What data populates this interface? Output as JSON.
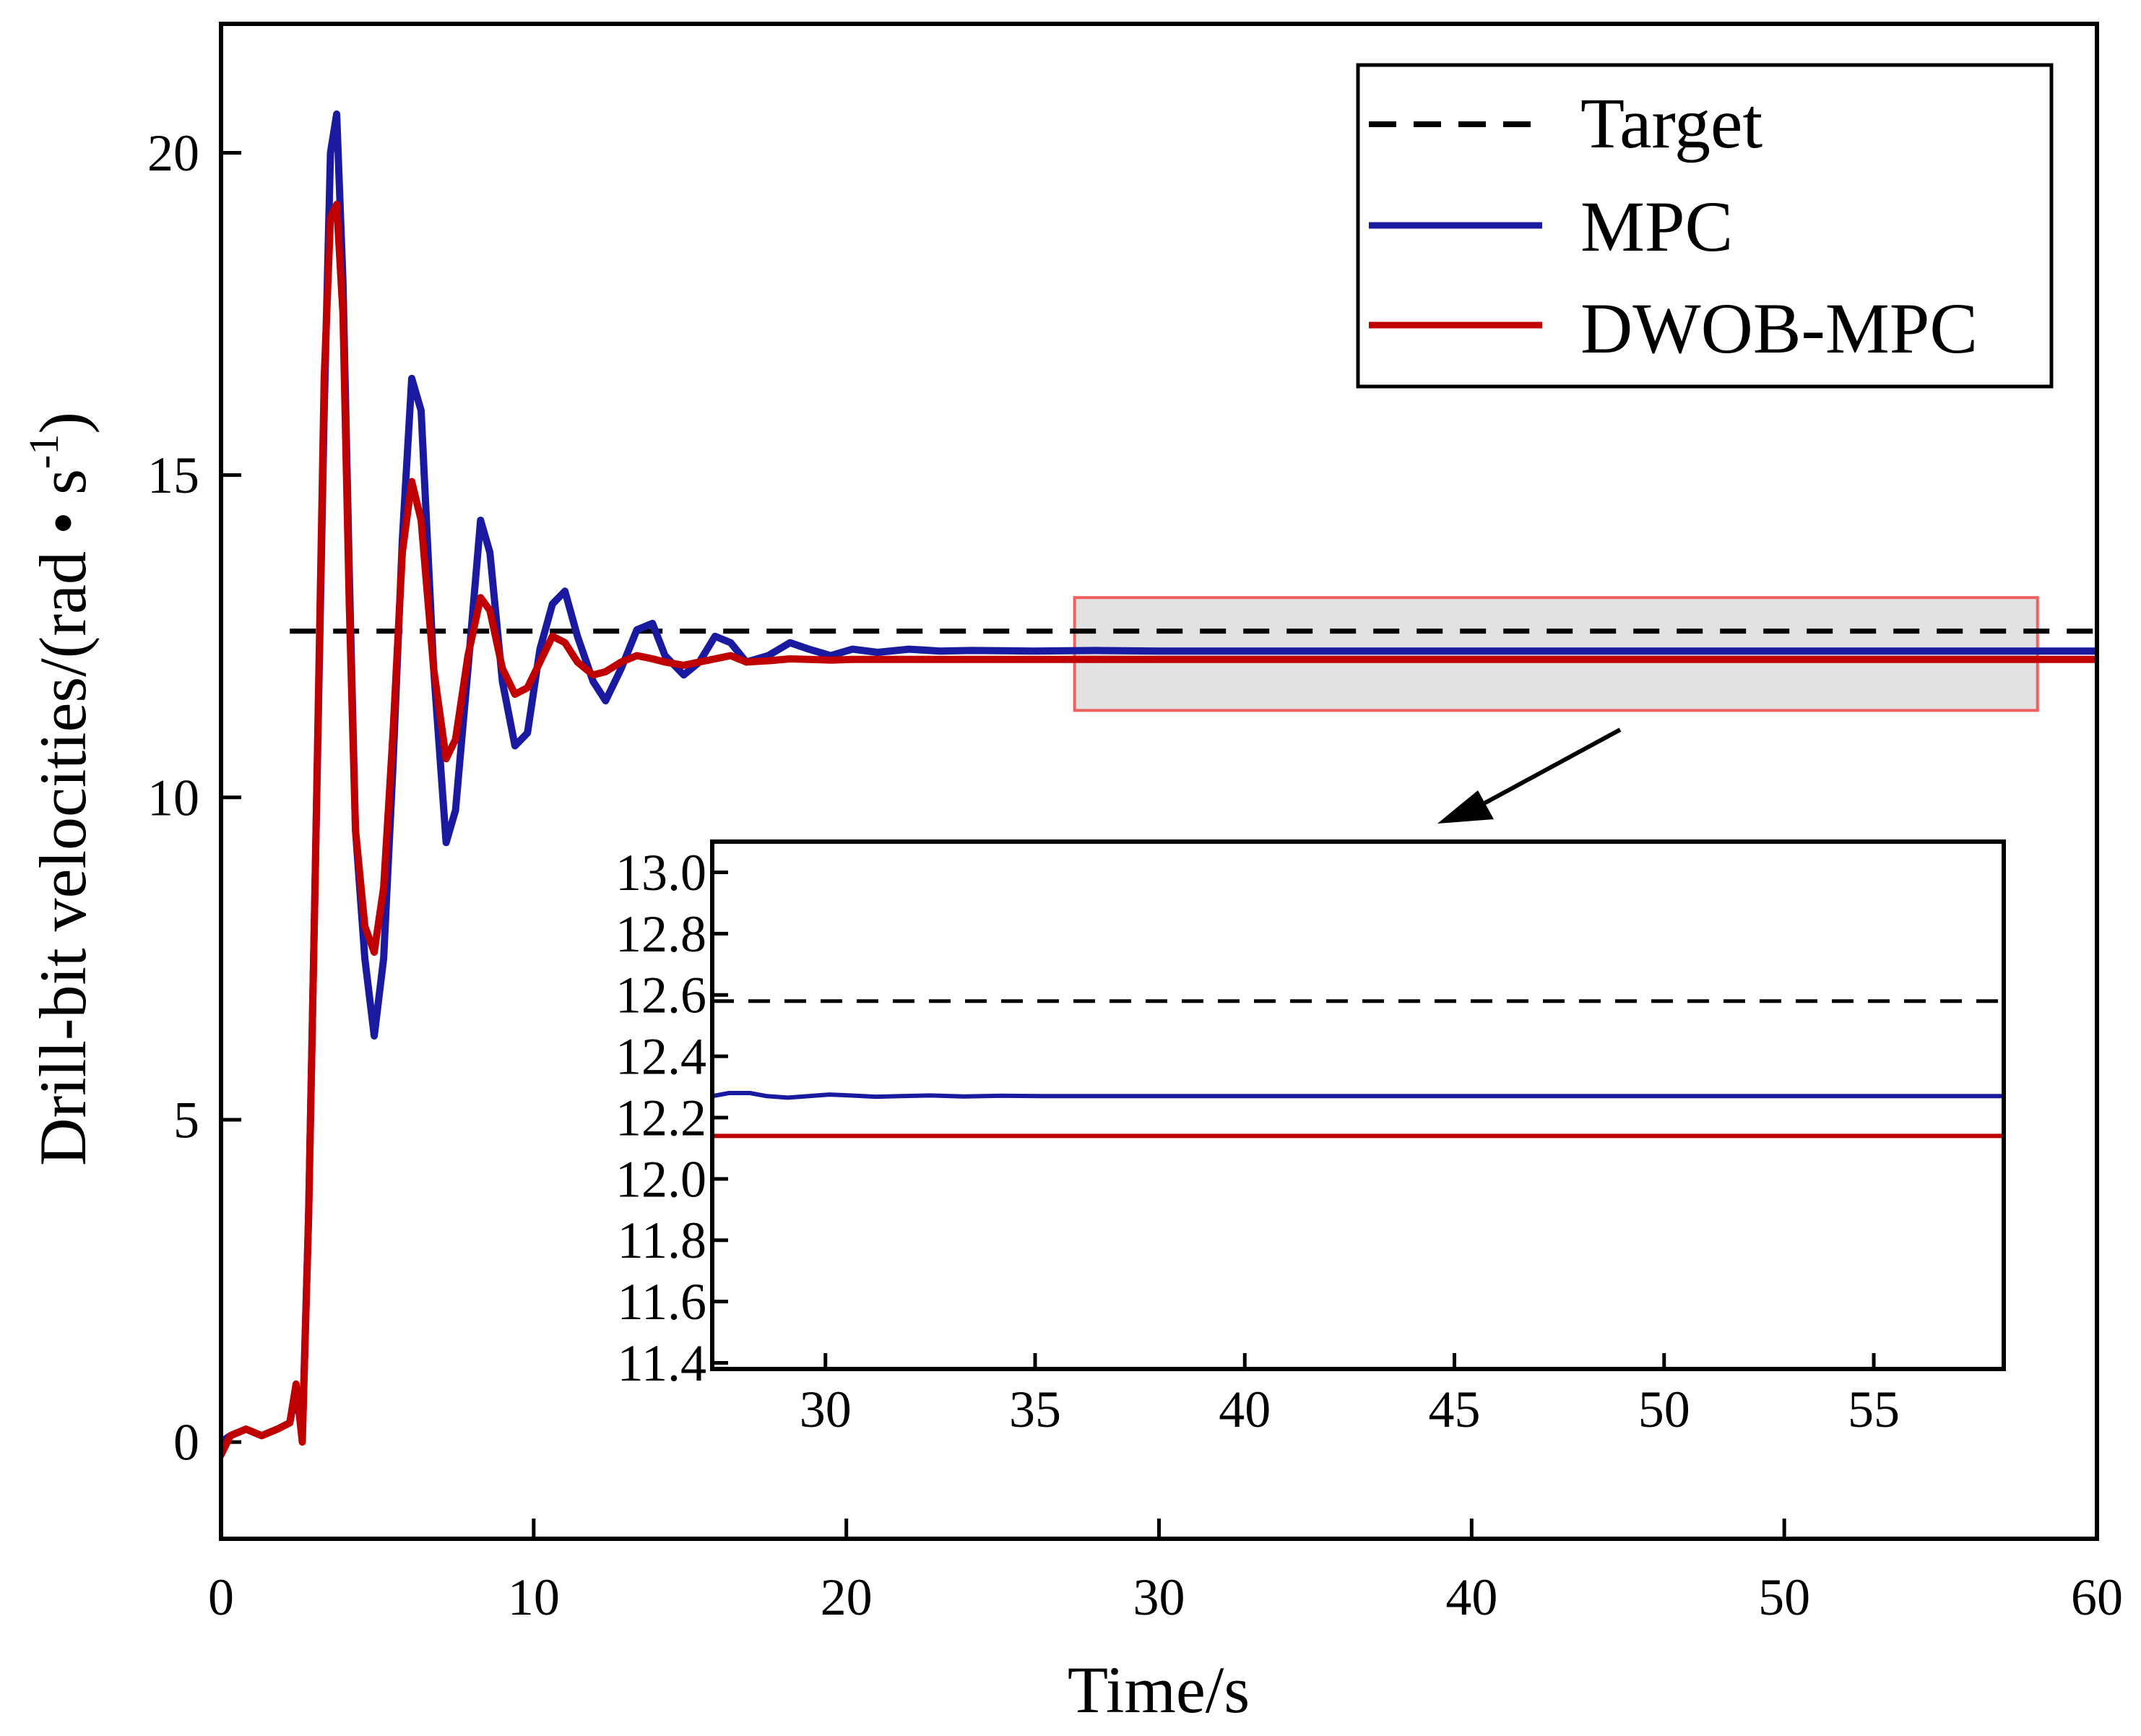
{
  "chart_data": [
    {
      "type": "line",
      "role": "main",
      "xlabel": "Time/s",
      "ylabel_text": "Drill-bit velocities/(rad • s",
      "ylabel_sup": "-1",
      "ylabel_close": ")",
      "xlim": [
        0,
        60
      ],
      "ylim": [
        -1.5,
        22
      ],
      "xticks": [
        0,
        10,
        20,
        30,
        40,
        50,
        60
      ],
      "yticks": [
        0,
        5,
        10,
        15,
        20
      ],
      "legend": {
        "position": "top-right",
        "entries": [
          {
            "label": "Target",
            "color": "#000000",
            "style": "dashed"
          },
          {
            "label": "MPC",
            "color": "#1a1aa0",
            "style": "solid"
          },
          {
            "label": "DWOB-MPC",
            "color": "#c00000",
            "style": "solid"
          }
        ]
      },
      "series": [
        {
          "name": "Target",
          "color": "#000000",
          "dashed": true,
          "x": [
            2.2,
            60
          ],
          "y": [
            12.58,
            12.58
          ]
        },
        {
          "name": "MPC",
          "color": "#1a1aa0",
          "x": [
            0,
            0.3,
            0.8,
            1.3,
            1.8,
            2.2,
            2.4,
            2.6,
            2.8,
            3.0,
            3.3,
            3.5,
            3.7,
            3.9,
            4.1,
            4.3,
            4.6,
            4.9,
            5.2,
            5.5,
            5.8,
            6.1,
            6.4,
            6.8,
            7.2,
            7.5,
            7.9,
            8.3,
            8.6,
            9.0,
            9.4,
            9.8,
            10.2,
            10.6,
            11.0,
            11.4,
            11.9,
            12.3,
            12.8,
            13.3,
            13.8,
            14.2,
            14.8,
            15.3,
            15.8,
            16.3,
            16.8,
            17.5,
            18.2,
            18.8,
            19.5,
            20.2,
            21.0,
            22.0,
            23.0,
            24.0,
            26.0,
            28.0,
            30.0,
            35.0,
            40.0,
            45.0,
            50.0,
            55.0,
            60.0
          ],
          "y": [
            0.0,
            0.1,
            0.2,
            0.1,
            0.2,
            0.3,
            0.8,
            0.1,
            3.5,
            8.5,
            16.0,
            20.0,
            20.6,
            18.0,
            13.5,
            9.5,
            7.5,
            6.3,
            7.5,
            10.5,
            14.0,
            16.5,
            16.0,
            12.0,
            9.3,
            9.8,
            12.0,
            14.3,
            13.8,
            11.8,
            10.8,
            11.0,
            12.3,
            13.0,
            13.2,
            12.5,
            11.8,
            11.5,
            12.0,
            12.6,
            12.7,
            12.2,
            11.9,
            12.1,
            12.5,
            12.4,
            12.1,
            12.2,
            12.4,
            12.3,
            12.2,
            12.3,
            12.25,
            12.3,
            12.27,
            12.28,
            12.27,
            12.28,
            12.27,
            12.27,
            12.27,
            12.27,
            12.27,
            12.27,
            12.27
          ]
        },
        {
          "name": "DWOB-MPC",
          "color": "#c00000",
          "x": [
            0,
            0.3,
            0.8,
            1.3,
            1.8,
            2.2,
            2.4,
            2.6,
            2.8,
            3.0,
            3.3,
            3.5,
            3.7,
            3.9,
            4.1,
            4.3,
            4.6,
            4.9,
            5.2,
            5.5,
            5.8,
            6.1,
            6.4,
            6.8,
            7.2,
            7.5,
            7.9,
            8.3,
            8.6,
            9.0,
            9.4,
            9.8,
            10.2,
            10.6,
            11.0,
            11.4,
            11.9,
            12.3,
            12.8,
            13.3,
            13.8,
            14.2,
            14.8,
            15.3,
            15.8,
            16.3,
            16.8,
            17.5,
            18.2,
            18.8,
            19.5,
            20.2,
            21.0,
            22.0,
            23.0,
            24.0,
            26.0,
            28.0,
            30.0,
            35.0,
            40.0,
            45.0,
            50.0,
            55.0,
            60.0
          ],
          "y": [
            -0.2,
            0.1,
            0.2,
            0.1,
            0.2,
            0.3,
            0.9,
            0.0,
            3.5,
            8.5,
            16.5,
            19.0,
            19.2,
            17.5,
            13.0,
            9.5,
            8.0,
            7.6,
            8.6,
            11.0,
            13.8,
            14.9,
            14.3,
            12.0,
            10.6,
            10.9,
            12.2,
            13.1,
            12.9,
            12.0,
            11.6,
            11.7,
            12.1,
            12.5,
            12.4,
            12.1,
            11.9,
            11.95,
            12.1,
            12.2,
            12.15,
            12.1,
            12.05,
            12.1,
            12.15,
            12.2,
            12.1,
            12.12,
            12.15,
            12.14,
            12.13,
            12.14,
            12.14,
            12.14,
            12.14,
            12.14,
            12.14,
            12.14,
            12.14,
            12.14,
            12.14,
            12.14,
            12.14,
            12.14,
            12.14
          ]
        }
      ],
      "highlight_region": {
        "x": [
          27.3,
          58.1
        ],
        "y": [
          11.35,
          13.1
        ],
        "color": "#f06060"
      }
    },
    {
      "type": "line",
      "role": "inset",
      "xlim": [
        27.3,
        58.1
      ],
      "ylim": [
        11.38,
        13.1
      ],
      "xticks": [
        30,
        35,
        40,
        45,
        50,
        55
      ],
      "yticks": [
        "13.0",
        "12.8",
        "12.6",
        "12.4",
        "12.2",
        "12.0",
        "11.8",
        "11.6",
        "11.4"
      ],
      "series": [
        {
          "name": "Target",
          "color": "#000000",
          "dashed": true,
          "x": [
            27.3,
            58.1
          ],
          "y": [
            12.58,
            12.58
          ]
        },
        {
          "name": "MPC",
          "color": "#1a1aa0",
          "x": [
            27.3,
            27.7,
            28.2,
            28.6,
            29.1,
            29.6,
            30.1,
            30.6,
            31.2,
            31.8,
            32.5,
            33.3,
            34.2,
            35.2,
            36.5,
            38.0,
            40.0,
            45.0,
            50.0,
            55.0,
            58.1
          ],
          "y": [
            12.27,
            12.28,
            12.28,
            12.27,
            12.265,
            12.27,
            12.275,
            12.272,
            12.268,
            12.27,
            12.272,
            12.269,
            12.271,
            12.27,
            12.27,
            12.27,
            12.27,
            12.27,
            12.27,
            12.27,
            12.27
          ]
        },
        {
          "name": "DWOB-MPC",
          "color": "#c00000",
          "x": [
            27.3,
            58.1
          ],
          "y": [
            12.14,
            12.14
          ]
        }
      ]
    }
  ]
}
